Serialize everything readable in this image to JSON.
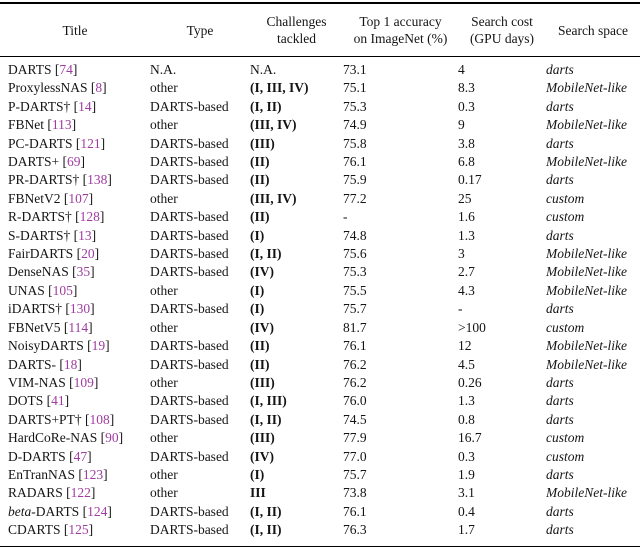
{
  "table": {
    "colors": {
      "citation": "#a03ca0",
      "text": "#141414",
      "rule": "#000000"
    },
    "header": {
      "columns": [
        {
          "id": "title",
          "lines": [
            "Title"
          ]
        },
        {
          "id": "type",
          "lines": [
            "Type"
          ]
        },
        {
          "id": "challenges",
          "lines": [
            "Challenges",
            "tackled"
          ]
        },
        {
          "id": "accuracy",
          "lines": [
            "Top 1 accuracy",
            "on ImageNet (%)"
          ]
        },
        {
          "id": "cost",
          "lines": [
            "Search cost",
            "(GPU days)"
          ]
        },
        {
          "id": "space",
          "lines": [
            "Search space"
          ]
        }
      ]
    },
    "rows": [
      {
        "title": "DARTS",
        "cite": "74",
        "type": "N.A.",
        "challenges": "N.A.",
        "accuracy": "73.1",
        "cost": "4",
        "space": "darts"
      },
      {
        "title": "ProxylessNAS",
        "cite": "8",
        "type": "other",
        "challenges": "(I, III, IV)",
        "accuracy": "75.1",
        "cost": "8.3",
        "space": "MobileNet-like"
      },
      {
        "title": "P-DARTS†",
        "cite": "14",
        "type": "DARTS-based",
        "challenges": "(I, II)",
        "accuracy": "75.3",
        "cost": "0.3",
        "space": "darts"
      },
      {
        "title": "FBNet",
        "cite": "113",
        "type": "other",
        "challenges": "(III, IV)",
        "accuracy": "74.9",
        "cost": "9",
        "space": "MobileNet-like"
      },
      {
        "title": "PC-DARTS",
        "cite": "121",
        "type": "DARTS-based",
        "challenges": "(III)",
        "accuracy": "75.8",
        "cost": "3.8",
        "space": "darts"
      },
      {
        "title": "DARTS+",
        "cite": "69",
        "type": "DARTS-based",
        "challenges": "(II)",
        "accuracy": "76.1",
        "cost": "6.8",
        "space": "MobileNet-like"
      },
      {
        "title": "PR-DARTS†",
        "cite": "138",
        "type": "DARTS-based",
        "challenges": "(II)",
        "accuracy": "75.9",
        "cost": "0.17",
        "space": "darts"
      },
      {
        "title": "FBNetV2",
        "cite": "107",
        "type": "other",
        "challenges": "(III, IV)",
        "accuracy": "77.2",
        "cost": "25",
        "space": "custom"
      },
      {
        "title": "R-DARTS†",
        "cite": "128",
        "type": "DARTS-based",
        "challenges": "(II)",
        "accuracy": "-",
        "cost": "1.6",
        "space": "custom"
      },
      {
        "title": "S-DARTS†",
        "cite": "13",
        "type": "DARTS-based",
        "challenges": "(I)",
        "accuracy": "74.8",
        "cost": "1.3",
        "space": "darts"
      },
      {
        "title": "FairDARTS",
        "cite": "20",
        "type": "DARTS-based",
        "challenges": "(I, II)",
        "accuracy": "75.6",
        "cost": "3",
        "space": "MobileNet-like"
      },
      {
        "title": "DenseNAS",
        "cite": "35",
        "type": "DARTS-based",
        "challenges": "(IV)",
        "accuracy": "75.3",
        "cost": "2.7",
        "space": "MobileNet-like"
      },
      {
        "title": "UNAS",
        "cite": "105",
        "type": "other",
        "challenges": "(I)",
        "accuracy": "75.5",
        "cost": "4.3",
        "space": "MobileNet-like"
      },
      {
        "title": "iDARTS†",
        "cite": "130",
        "type": "DARTS-based",
        "challenges": "(I)",
        "accuracy": "75.7",
        "cost": "-",
        "space": "darts"
      },
      {
        "title": "FBNetV5",
        "cite": "114",
        "type": "other",
        "challenges": "(IV)",
        "accuracy": "81.7",
        "cost": ">100",
        "space": "custom"
      },
      {
        "title": "NoisyDARTS",
        "cite": "19",
        "type": "DARTS-based",
        "challenges": "(II)",
        "accuracy": "76.1",
        "cost": "12",
        "space": "MobileNet-like"
      },
      {
        "title": "DARTS-",
        "cite": "18",
        "type": "DARTS-based",
        "challenges": "(II)",
        "accuracy": "76.2",
        "cost": "4.5",
        "space": "MobileNet-like"
      },
      {
        "title": "VIM-NAS",
        "cite": "109",
        "type": "other",
        "challenges": "(III)",
        "accuracy": "76.2",
        "cost": "0.26",
        "space": "darts"
      },
      {
        "title": "DOTS",
        "cite": "41",
        "type": "DARTS-based",
        "challenges": "(I, III)",
        "accuracy": "76.0",
        "cost": "1.3",
        "space": "darts"
      },
      {
        "title": "DARTS+PT†",
        "cite": "108",
        "type": "DARTS-based",
        "challenges": "(I, II)",
        "accuracy": "74.5",
        "cost": "0.8",
        "space": "darts"
      },
      {
        "title": "HardCoRe-NAS",
        "cite": "90",
        "type": "other",
        "challenges": "(III)",
        "accuracy": "77.9",
        "cost": "16.7",
        "space": "custom"
      },
      {
        "title": "D-DARTS",
        "cite": "47",
        "type": "DARTS-based",
        "challenges": "(IV)",
        "accuracy": "77.0",
        "cost": "0.3",
        "space": "custom"
      },
      {
        "title": "EnTranNAS",
        "cite": "123",
        "type": "other",
        "challenges": "(I)",
        "accuracy": "75.7",
        "cost": "1.9",
        "space": "darts"
      },
      {
        "title": "RADARS",
        "cite": "122",
        "type": "other",
        "challenges": "III",
        "accuracy": "73.8",
        "cost": "3.1",
        "space": "MobileNet-like"
      },
      {
        "title": "*beta*-DARTS",
        "cite": "124",
        "type": "DARTS-based",
        "challenges": "(I, II)",
        "accuracy": "76.1",
        "cost": "0.4",
        "space": "darts"
      },
      {
        "title": "CDARTS",
        "cite": "125",
        "type": "DARTS-based",
        "challenges": "(I, II)",
        "accuracy": "76.3",
        "cost": "1.7",
        "space": "darts"
      }
    ]
  }
}
